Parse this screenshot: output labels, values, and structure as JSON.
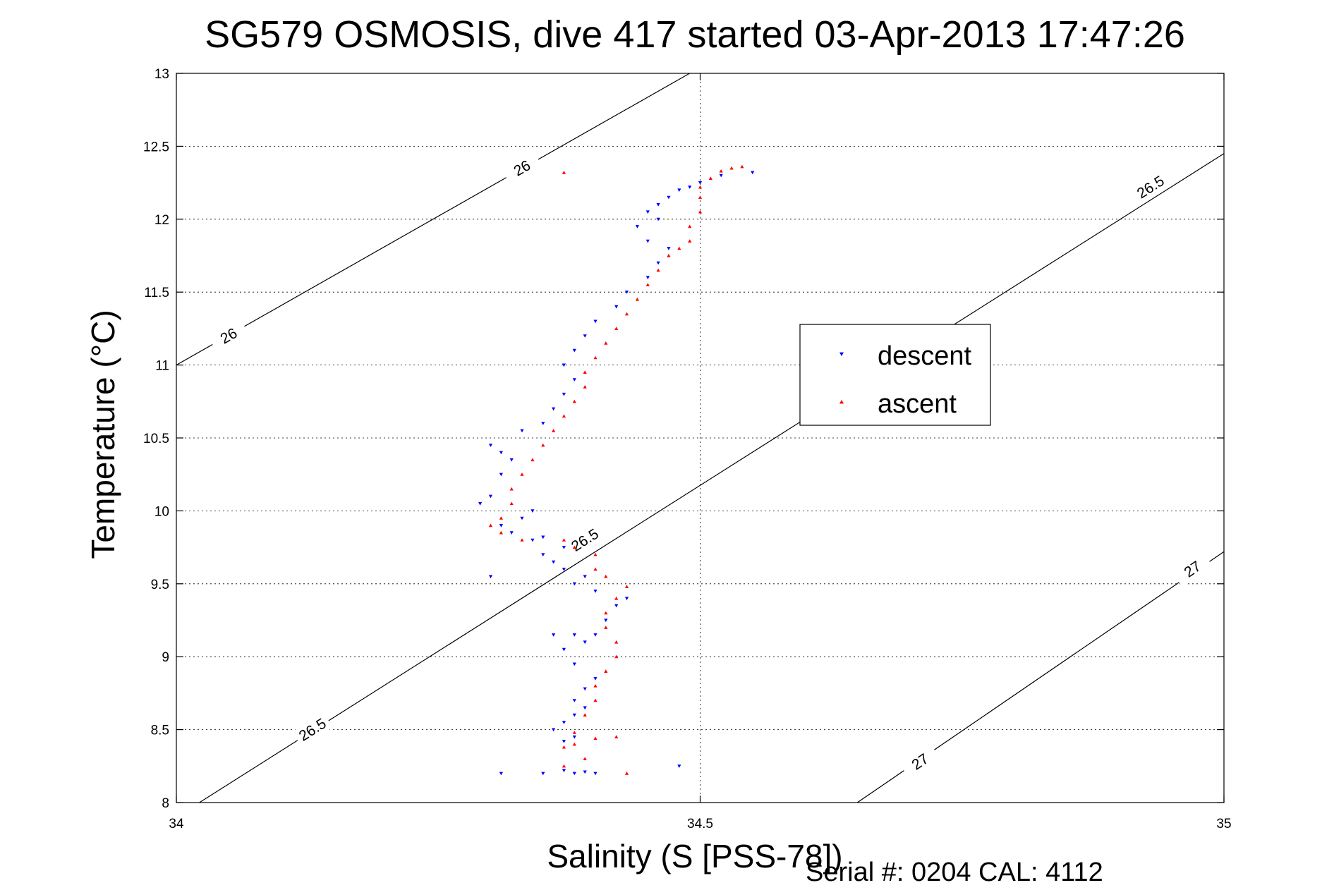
{
  "chart_data": {
    "type": "scatter",
    "title": "SG579 OSMOSIS, dive 417 started 03-Apr-2013 17:47:26",
    "xlabel": "Salinity (S [PSS-78])",
    "ylabel": "Temperature (°C)",
    "xlim": [
      34,
      35
    ],
    "ylim": [
      8,
      13
    ],
    "x_ticks": [
      "34",
      "34.5",
      "35"
    ],
    "y_ticks": [
      "8",
      "8.5",
      "9",
      "9.5",
      "10",
      "10.5",
      "11",
      "11.5",
      "12",
      "12.5",
      "13"
    ],
    "grid": true,
    "legend_position": "right-center",
    "footer": "Serial #: 0204  CAL: 4112",
    "contours": [
      {
        "level": "26",
        "points": [
          [
            34.0,
            11.0
          ],
          [
            34.49,
            13.0
          ]
        ],
        "labels": [
          {
            "text": "26",
            "at": [
              34.05,
              11.2
            ]
          },
          {
            "text": "26",
            "at": [
              34.33,
              12.35
            ]
          }
        ]
      },
      {
        "level": "26.5",
        "points": [
          [
            34.0,
            7.9
          ],
          [
            35.0,
            12.45
          ]
        ],
        "labels": [
          {
            "text": "26.5",
            "at": [
              34.13,
              8.5
            ]
          },
          {
            "text": "26.5",
            "at": [
              34.39,
              9.8
            ]
          },
          {
            "text": "26.5",
            "at": [
              34.93,
              12.22
            ]
          }
        ]
      },
      {
        "level": "27",
        "points": [
          [
            34.65,
            8.0
          ],
          [
            35.0,
            9.72
          ]
        ],
        "labels": [
          {
            "text": "27",
            "at": [
              34.71,
              8.28
            ]
          },
          {
            "text": "27",
            "at": [
              34.97,
              9.6
            ]
          }
        ]
      }
    ],
    "series": [
      {
        "name": "descent",
        "color": "#0000ff",
        "marker": "triangle-down",
        "points": [
          [
            34.31,
            8.2
          ],
          [
            34.35,
            8.2
          ],
          [
            34.37,
            8.22
          ],
          [
            34.38,
            8.2
          ],
          [
            34.39,
            8.21
          ],
          [
            34.4,
            8.2
          ],
          [
            34.48,
            8.25
          ],
          [
            34.37,
            8.42
          ],
          [
            34.38,
            8.45
          ],
          [
            34.36,
            8.5
          ],
          [
            34.37,
            8.55
          ],
          [
            34.38,
            8.6
          ],
          [
            34.39,
            8.65
          ],
          [
            34.38,
            8.7
          ],
          [
            34.39,
            8.78
          ],
          [
            34.4,
            8.85
          ],
          [
            34.38,
            8.95
          ],
          [
            34.37,
            9.05
          ],
          [
            34.39,
            9.1
          ],
          [
            34.36,
            9.15
          ],
          [
            34.38,
            9.15
          ],
          [
            34.4,
            9.15
          ],
          [
            34.41,
            9.25
          ],
          [
            34.42,
            9.35
          ],
          [
            34.43,
            9.4
          ],
          [
            34.4,
            9.45
          ],
          [
            34.38,
            9.5
          ],
          [
            34.39,
            9.55
          ],
          [
            34.37,
            9.6
          ],
          [
            34.36,
            9.65
          ],
          [
            34.35,
            9.7
          ],
          [
            34.37,
            9.75
          ],
          [
            34.34,
            9.8
          ],
          [
            34.35,
            9.82
          ],
          [
            34.32,
            9.85
          ],
          [
            34.31,
            9.9
          ],
          [
            34.33,
            9.95
          ],
          [
            34.34,
            10.0
          ],
          [
            34.3,
            9.55
          ],
          [
            34.29,
            10.05
          ],
          [
            34.3,
            10.1
          ],
          [
            34.31,
            10.25
          ],
          [
            34.32,
            10.35
          ],
          [
            34.31,
            10.4
          ],
          [
            34.3,
            10.45
          ],
          [
            34.33,
            10.55
          ],
          [
            34.35,
            10.6
          ],
          [
            34.36,
            10.7
          ],
          [
            34.37,
            10.8
          ],
          [
            34.38,
            10.9
          ],
          [
            34.37,
            11.0
          ],
          [
            34.38,
            11.1
          ],
          [
            34.39,
            11.2
          ],
          [
            34.4,
            11.3
          ],
          [
            34.42,
            11.4
          ],
          [
            34.43,
            11.5
          ],
          [
            34.45,
            11.6
          ],
          [
            34.46,
            11.7
          ],
          [
            34.47,
            11.8
          ],
          [
            34.45,
            11.85
          ],
          [
            34.44,
            11.95
          ],
          [
            34.46,
            12.0
          ],
          [
            34.45,
            12.05
          ],
          [
            34.46,
            12.1
          ],
          [
            34.47,
            12.15
          ],
          [
            34.48,
            12.2
          ],
          [
            34.49,
            12.22
          ],
          [
            34.5,
            12.25
          ],
          [
            34.52,
            12.3
          ],
          [
            34.55,
            12.32
          ]
        ]
      },
      {
        "name": "ascent",
        "color": "#ff0000",
        "marker": "triangle-up",
        "points": [
          [
            34.37,
            8.25
          ],
          [
            34.39,
            8.3
          ],
          [
            34.43,
            8.2
          ],
          [
            34.37,
            8.38
          ],
          [
            34.38,
            8.4
          ],
          [
            34.4,
            8.44
          ],
          [
            34.42,
            8.45
          ],
          [
            34.38,
            8.48
          ],
          [
            34.39,
            8.6
          ],
          [
            34.4,
            8.7
          ],
          [
            34.4,
            8.8
          ],
          [
            34.41,
            8.9
          ],
          [
            34.42,
            9.0
          ],
          [
            34.42,
            9.1
          ],
          [
            34.41,
            9.2
          ],
          [
            34.41,
            9.3
          ],
          [
            34.42,
            9.4
          ],
          [
            34.43,
            9.48
          ],
          [
            34.41,
            9.55
          ],
          [
            34.4,
            9.6
          ],
          [
            34.4,
            9.7
          ],
          [
            34.38,
            9.75
          ],
          [
            34.37,
            9.8
          ],
          [
            34.33,
            9.8
          ],
          [
            34.31,
            9.85
          ],
          [
            34.3,
            9.9
          ],
          [
            34.31,
            9.95
          ],
          [
            34.32,
            10.05
          ],
          [
            34.32,
            10.15
          ],
          [
            34.33,
            10.25
          ],
          [
            34.34,
            10.35
          ],
          [
            34.35,
            10.45
          ],
          [
            34.36,
            10.55
          ],
          [
            34.37,
            10.65
          ],
          [
            34.38,
            10.75
          ],
          [
            34.39,
            10.85
          ],
          [
            34.39,
            10.95
          ],
          [
            34.4,
            11.05
          ],
          [
            34.41,
            11.15
          ],
          [
            34.42,
            11.25
          ],
          [
            34.43,
            11.35
          ],
          [
            34.44,
            11.45
          ],
          [
            34.45,
            11.55
          ],
          [
            34.46,
            11.65
          ],
          [
            34.47,
            11.75
          ],
          [
            34.48,
            11.8
          ],
          [
            34.49,
            11.85
          ],
          [
            34.49,
            11.95
          ],
          [
            34.5,
            12.05
          ],
          [
            34.5,
            12.15
          ],
          [
            34.5,
            12.22
          ],
          [
            34.51,
            12.28
          ],
          [
            34.52,
            12.33
          ],
          [
            34.53,
            12.35
          ],
          [
            34.54,
            12.36
          ],
          [
            34.37,
            12.32
          ]
        ]
      }
    ]
  }
}
